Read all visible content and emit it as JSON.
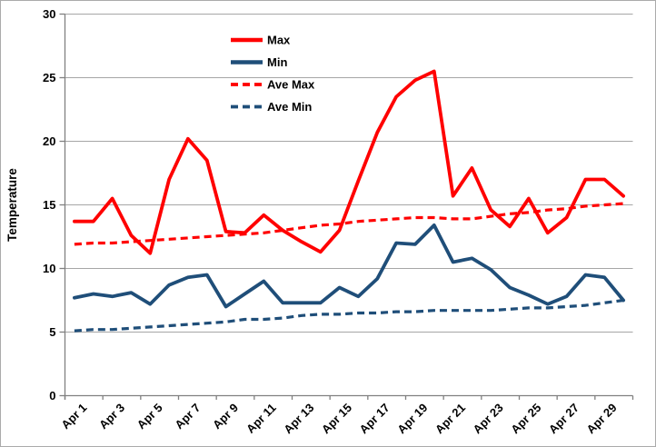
{
  "chart_data": {
    "type": "line",
    "title": "",
    "ylabel": "Temperature",
    "xlabel": "",
    "ylim": [
      0,
      30
    ],
    "yticks": [
      0,
      5,
      10,
      15,
      20,
      25,
      30
    ],
    "grid": "horizontal",
    "legend_position": "top-center",
    "x_categories": [
      "Apr 1",
      "Apr 2",
      "Apr 3",
      "Apr 4",
      "Apr 5",
      "Apr 6",
      "Apr 7",
      "Apr 8",
      "Apr 9",
      "Apr 10",
      "Apr 11",
      "Apr 12",
      "Apr 13",
      "Apr 14",
      "Apr 15",
      "Apr 16",
      "Apr 17",
      "Apr 18",
      "Apr 19",
      "Apr 20",
      "Apr 21",
      "Apr 22",
      "Apr 23",
      "Apr 24",
      "Apr 25",
      "Apr 26",
      "Apr 27",
      "Apr 28",
      "Apr 29",
      "Apr 30"
    ],
    "xtick_labels": [
      "Apr 1",
      "Apr 3",
      "Apr 5",
      "Apr 7",
      "Apr 9",
      "Apr 11",
      "Apr 13",
      "Apr 15",
      "Apr 17",
      "Apr 19",
      "Apr 21",
      "Apr 23",
      "Apr 25",
      "Apr 27",
      "Apr 29"
    ],
    "series": [
      {
        "name": "Max",
        "color": "#ff0000",
        "style": "solid",
        "values": [
          13.7,
          13.7,
          15.5,
          12.6,
          11.2,
          17.0,
          20.2,
          18.5,
          12.9,
          12.8,
          14.2,
          13.0,
          12.1,
          11.3,
          13.0,
          16.9,
          20.7,
          23.5,
          24.8,
          25.5,
          15.7,
          17.9,
          14.6,
          13.3,
          15.5,
          12.8,
          14.0,
          17.0,
          17.0,
          15.7
        ]
      },
      {
        "name": "Min",
        "color": "#1f4e79",
        "style": "solid",
        "values": [
          7.7,
          8.0,
          7.8,
          8.1,
          7.2,
          8.7,
          9.3,
          9.5,
          7.0,
          8.0,
          9.0,
          7.3,
          7.3,
          7.3,
          8.5,
          7.8,
          9.2,
          12.0,
          11.9,
          13.4,
          10.5,
          10.8,
          9.9,
          8.5,
          7.9,
          7.2,
          7.8,
          9.5,
          9.3,
          7.5
        ]
      },
      {
        "name": "Ave Max",
        "color": "#ff0000",
        "style": "dashed",
        "values": [
          11.9,
          12.0,
          12.0,
          12.1,
          12.2,
          12.3,
          12.4,
          12.5,
          12.6,
          12.7,
          12.8,
          13.0,
          13.2,
          13.4,
          13.5,
          13.7,
          13.8,
          13.9,
          14.0,
          14.0,
          13.9,
          13.9,
          14.1,
          14.3,
          14.4,
          14.6,
          14.7,
          14.9,
          15.0,
          15.1
        ]
      },
      {
        "name": "Ave Min",
        "color": "#1f4e79",
        "style": "dashed",
        "values": [
          5.1,
          5.2,
          5.2,
          5.3,
          5.4,
          5.5,
          5.6,
          5.7,
          5.8,
          6.0,
          6.0,
          6.1,
          6.3,
          6.4,
          6.4,
          6.5,
          6.5,
          6.6,
          6.6,
          6.7,
          6.7,
          6.7,
          6.7,
          6.8,
          6.9,
          6.9,
          7.0,
          7.1,
          7.3,
          7.5
        ]
      }
    ],
    "colors": {
      "axis": "#808080",
      "gridline": "#a6a6a6",
      "text": "#000000",
      "background": "#ffffff"
    }
  }
}
